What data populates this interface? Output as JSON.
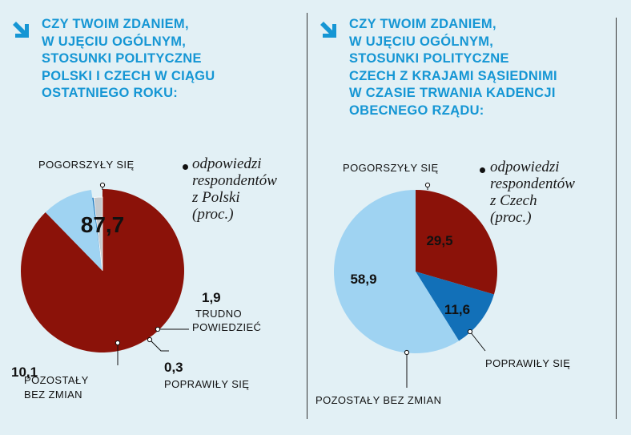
{
  "colors": {
    "background": "#e2f0f5",
    "title": "#1596d4",
    "dark_red": "#8b1209",
    "blue": "#1270b8",
    "light_blue": "#9fd3f2",
    "grey": "#c6cbcf"
  },
  "chart_data": [
    {
      "type": "pie",
      "title": "CZY TWOIM ZDANIEM,\nW UJĘCIU OGÓLNYM,\nSTOSUNKI POLITYCZNE\nPOLSKI I CZECH W CIĄGU\nOSTATNIEGO ROKU:",
      "note": "odpowiedzi\nrespondentów\nz Polski\n(proc.)",
      "slices": [
        {
          "label": "POGORSZYŁY SIĘ",
          "value": 87.7,
          "value_label": "87,7",
          "color": "#8b1209"
        },
        {
          "label": "POZOSTAŁY\nBEZ ZMIAN",
          "value": 10.1,
          "value_label": "10,1",
          "color": "#9fd3f2"
        },
        {
          "label": "POPRAWIŁY SIĘ",
          "value": 0.3,
          "value_label": "0,3",
          "color": "#1270b8"
        },
        {
          "label": "TRUDNO\nPOWIEDZIEĆ",
          "value": 1.9,
          "value_label": "1,9",
          "color": "#c6cbcf"
        }
      ]
    },
    {
      "type": "pie",
      "title": "CZY TWOIM ZDANIEM,\nW UJĘCIU OGÓLNYM,\nSTOSUNKI POLITYCZNE\nCZECH Z KRAJAMI SĄSIEDNIMI\nW CZASIE TRWANIA KADENCJI\nOBECNEGO RZĄDU:",
      "note": "odpowiedzi\nrespondentów\nz Czech\n(proc.)",
      "slices": [
        {
          "label": "POGORSZYŁY SIĘ",
          "value": 29.5,
          "value_label": "29,5",
          "color": "#8b1209"
        },
        {
          "label": "POPRAWIŁY SIĘ",
          "value": 11.6,
          "value_label": "11,6",
          "color": "#1270b8"
        },
        {
          "label": "POZOSTAŁY BEZ ZMIAN",
          "value": 58.9,
          "value_label": "58,9",
          "color": "#9fd3f2"
        }
      ]
    }
  ]
}
